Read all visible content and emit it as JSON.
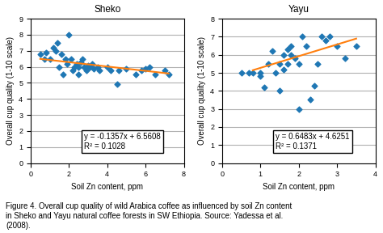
{
  "chart_data": [
    {
      "type": "scatter",
      "title": "Sheko",
      "xlabel": "Soil Zn content, ppm",
      "ylabel": "Overall cup quality (1-10 scale)",
      "xlim": [
        0,
        8
      ],
      "ylim": [
        0,
        9
      ],
      "xticks": [
        0,
        2,
        4,
        6,
        8
      ],
      "yticks": [
        0,
        1,
        2,
        3,
        4,
        5,
        6,
        7,
        8,
        9
      ],
      "grid": "y",
      "annotations": [
        "y = -0.1357x + 6.5608",
        "R² = 0.1028"
      ],
      "series": [
        {
          "type": "scatter",
          "marker": "diamond",
          "x": [
            0.5,
            0.7,
            0.8,
            1.0,
            1.2,
            1.3,
            1.4,
            1.5,
            1.6,
            1.7,
            1.8,
            1.9,
            2.0,
            2.1,
            2.2,
            2.3,
            2.4,
            2.5,
            2.5,
            2.6,
            2.7,
            2.8,
            2.9,
            3.0,
            3.1,
            3.2,
            3.3,
            3.5,
            3.6,
            4.0,
            4.2,
            4.5,
            4.6,
            5.0,
            5.5,
            5.8,
            6.0,
            6.2,
            6.5,
            7.0,
            7.2
          ],
          "values": [
            6.8,
            6.5,
            6.9,
            6.5,
            7.2,
            7.0,
            7.5,
            6.0,
            6.8,
            5.5,
            6.5,
            6.2,
            8.0,
            6.5,
            5.8,
            6.0,
            6.2,
            6.0,
            5.5,
            6.3,
            6.5,
            6.0,
            5.8,
            6.1,
            6.0,
            6.2,
            5.9,
            6.0,
            5.8,
            6.0,
            5.8,
            4.9,
            5.8,
            5.9,
            5.5,
            5.8,
            5.9,
            6.0,
            5.5,
            5.8,
            5.5
          ]
        },
        {
          "type": "line",
          "line_style": "solid",
          "x": [
            0.5,
            7.2
          ],
          "values": [
            6.49295,
            5.58376
          ]
        }
      ]
    },
    {
      "type": "scatter",
      "title": "Yayu",
      "xlabel": "Soil Zn content, ppm",
      "ylabel": "Overall cup quality (1-10 scale)",
      "xlim": [
        0,
        4
      ],
      "ylim": [
        0,
        8
      ],
      "xticks": [
        0,
        1,
        2,
        3,
        4
      ],
      "yticks": [
        0,
        1,
        2,
        3,
        4,
        5,
        6,
        7,
        8
      ],
      "grid": "y",
      "annotations": [
        "y = 0.6483x + 4.6251",
        "R² = 0.1371"
      ],
      "series": [
        {
          "type": "scatter",
          "marker": "diamond",
          "x": [
            0.5,
            0.7,
            0.8,
            1.0,
            1.0,
            1.1,
            1.2,
            1.3,
            1.4,
            1.5,
            1.5,
            1.6,
            1.6,
            1.7,
            1.7,
            1.8,
            1.8,
            1.9,
            2.0,
            2.0,
            2.1,
            2.2,
            2.3,
            2.4,
            2.5,
            2.6,
            2.7,
            2.8,
            3.0,
            3.2,
            3.5
          ],
          "values": [
            5.0,
            5.0,
            5.0,
            5.0,
            4.8,
            4.2,
            5.5,
            6.2,
            5.0,
            5.5,
            4.0,
            6.0,
            5.2,
            6.3,
            5.5,
            6.5,
            6.0,
            5.8,
            5.5,
            3.0,
            7.0,
            6.5,
            3.5,
            4.3,
            5.5,
            7.0,
            6.8,
            7.0,
            6.5,
            5.8,
            6.5
          ]
        },
        {
          "type": "line",
          "line_style": "solid",
          "x": [
            0.8,
            3.5
          ],
          "values": [
            5.14374,
            6.89415
          ]
        }
      ]
    }
  ],
  "caption": "Figure 4. Overall cup quality of wild Arabica coffee as influenced by soil Zn content\nin Sheko and Yayu natural coffee forests in SW Ethiopia. Source: Yadessa et al.\n(2008)."
}
